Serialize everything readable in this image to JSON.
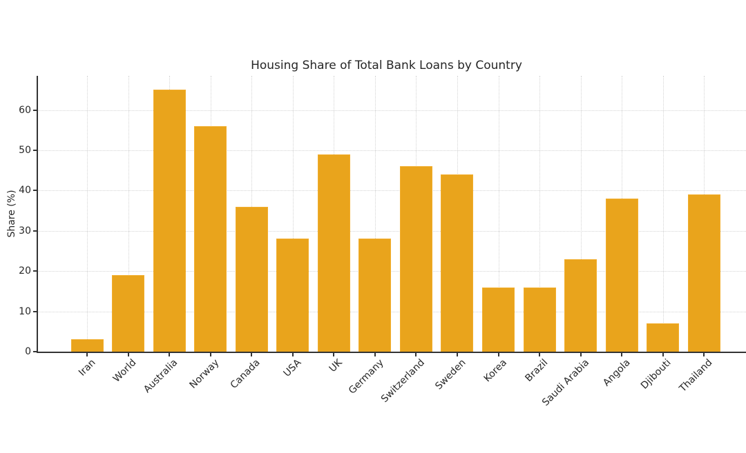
{
  "chart_data": {
    "type": "bar",
    "title": "Housing Share of Total Bank Loans by Country",
    "xlabel": "",
    "ylabel": "Share (%)",
    "categories": [
      "Iran",
      "World",
      "Australia",
      "Norway",
      "Canada",
      "USA",
      "UK",
      "Germany",
      "Switzerland",
      "Sweden",
      "Korea",
      "Brazil",
      "Saudi Arabia",
      "Angola",
      "Djibouti",
      "Thailand"
    ],
    "values": [
      3,
      19,
      65,
      56,
      36,
      28,
      49,
      28,
      46,
      44,
      16,
      16,
      23,
      38,
      7,
      39
    ],
    "yticks": [
      0,
      10,
      20,
      30,
      40,
      50,
      60
    ],
    "ylim": [
      0,
      68.5
    ],
    "grid": true,
    "grid_style": "dotted",
    "legend_position": "none",
    "x_tick_rotation_deg": 45,
    "bar_color": "#E9A41C",
    "bar_edge_color": "#F2AE2D",
    "axis_color": "#333333",
    "text_color": "#262626",
    "grid_color": "#d3d3d3",
    "background_color": "#ffffff"
  }
}
